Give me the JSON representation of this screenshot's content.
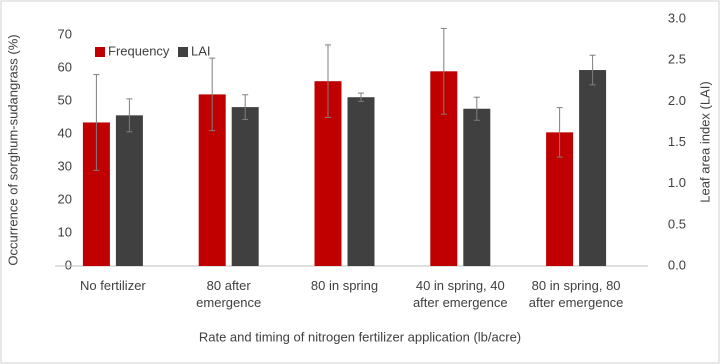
{
  "chart_data": {
    "type": "bar",
    "x_label": "Rate and timing of nitrogen fertilizer application (lb/acre)",
    "y_label": "Occurrence of sorghum-sudangrass (%)",
    "y2_label": "Leaf area index (LAI)",
    "categories": [
      "No fertilizer",
      "80 after\nemergence",
      "80 in spring",
      "40 in spring, 40\nafter emergence",
      "80 in spring, 80\nafter emergence"
    ],
    "series": [
      {
        "name": "Frequency",
        "color": "#c00000",
        "values": [
          43.5,
          52,
          56,
          59,
          40.5
        ],
        "errors": [
          14.5,
          11,
          11,
          13,
          7.5
        ]
      },
      {
        "name": "LAI",
        "color": "#404040",
        "axis": "y2",
        "values": [
          1.83,
          1.93,
          2.05,
          1.91,
          2.38
        ],
        "errors": [
          0.2,
          0.15,
          0.05,
          0.14,
          0.18
        ]
      }
    ],
    "ylim": [
      0,
      70
    ],
    "yticks": [
      0,
      10,
      20,
      30,
      40,
      50,
      60,
      70
    ],
    "y2lim": [
      0,
      3
    ],
    "y2ticks": [
      {
        "value": 0,
        "label": "0.0"
      },
      0.5,
      {
        "value": 1,
        "label": "1.0"
      },
      1.5,
      {
        "value": 2,
        "label": "2.0"
      },
      2.5,
      {
        "value": 3,
        "label": "3.0"
      }
    ],
    "grid": false,
    "legend": "top-left"
  }
}
